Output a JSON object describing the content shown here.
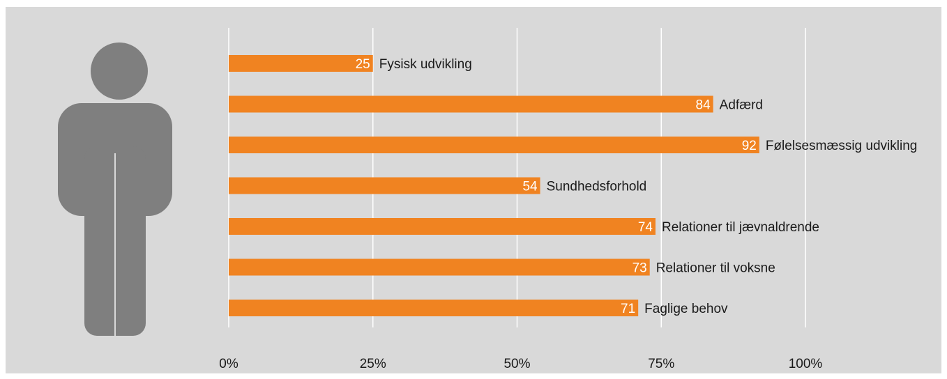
{
  "chart_data": {
    "type": "bar",
    "orientation": "horizontal",
    "categories": [
      "Fysisk udvikling",
      "Adfærd",
      "Følelsesmæssig udvikling",
      "Sundhedsforhold",
      "Relationer til jævnaldrende",
      "Relationer til voksne",
      "Faglige behov"
    ],
    "values": [
      25,
      84,
      92,
      54,
      74,
      73,
      71
    ],
    "value_labels": [
      "25",
      "84",
      "92",
      "54",
      "74",
      "73",
      "71"
    ],
    "x_ticks": [
      "0%",
      "25%",
      "50%",
      "75%",
      "100%"
    ],
    "xlim": [
      0,
      100
    ],
    "grid": true,
    "title": "",
    "xlabel": "",
    "ylabel": ""
  },
  "colors": {
    "background": "#d9d9d9",
    "bar": "#f08321",
    "gridline": "#ffffff",
    "figure": "#7f7f7f"
  },
  "icons": {
    "figure": "person-icon"
  }
}
